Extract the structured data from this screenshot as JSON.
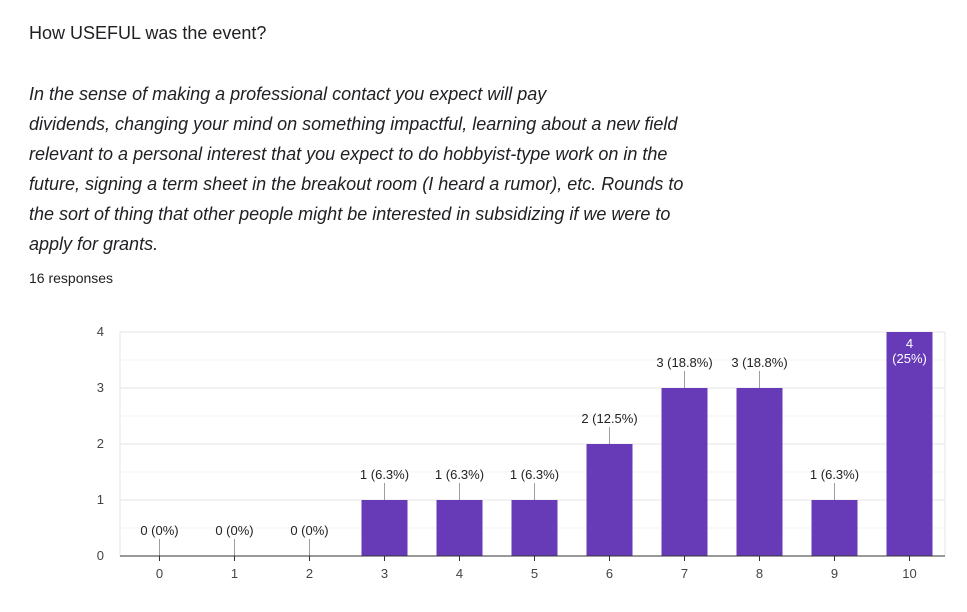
{
  "question": {
    "title": "How USEFUL was the event?",
    "description": "In the sense of making a professional contact you expect will pay\ndividends, changing your mind on something impactful, learning about a new field\nrelevant to a personal interest that you expect to do hobbyist-type work on in the\nfuture, signing a term sheet in the breakout room (I heard a rumor), etc. Rounds to\nthe sort of thing that other people might be interested in subsidizing if we were to\napply for grants.",
    "responses": "16 responses"
  },
  "chart_data": {
    "type": "bar",
    "categories": [
      "0",
      "1",
      "2",
      "3",
      "4",
      "5",
      "6",
      "7",
      "8",
      "9",
      "10"
    ],
    "values": [
      0,
      0,
      0,
      1,
      1,
      1,
      2,
      3,
      3,
      1,
      4
    ],
    "data_labels": [
      "0 (0%)",
      "0 (0%)",
      "0 (0%)",
      "1 (6.3%)",
      "1 (6.3%)",
      "1 (6.3%)",
      "2 (12.5%)",
      "3 (18.8%)",
      "3 (18.8%)",
      "1 (6.3%)",
      "4 (25%)"
    ],
    "y_ticks": [
      "0",
      "1",
      "2",
      "3",
      "4"
    ],
    "ylim": [
      0,
      4
    ],
    "title": "",
    "xlabel": "",
    "ylabel": "",
    "grid": true,
    "bar_color": "#673ab7",
    "grid_color": "#e6e6e6",
    "axis_color": "#333333"
  }
}
